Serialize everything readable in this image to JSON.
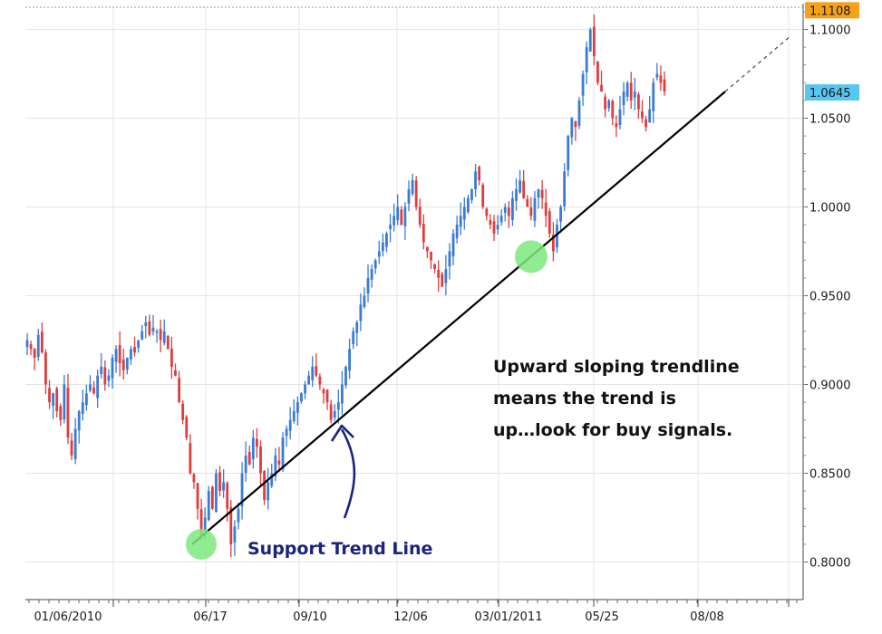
{
  "chart_data": {
    "type": "candlestick",
    "title": "",
    "xlabel": "",
    "ylabel": "",
    "ylim": [
      0.7925,
      1.1108
    ],
    "x_tick_labels": [
      "01/06/2010",
      "06/17",
      "09/10",
      "12/06",
      "03/01/2011",
      "05/25",
      "08/08"
    ],
    "y_tick_labels": [
      "1.1000",
      "1.0500",
      "1.0000",
      "0.9500",
      "0.9000",
      "0.8500",
      "0.8000"
    ],
    "y_ticks": [
      1.1,
      1.05,
      1.0,
      0.95,
      0.9,
      0.85,
      0.8
    ],
    "price_tags": [
      {
        "label": "1.1108",
        "value": 1.1108,
        "color": "#f7a11b"
      },
      {
        "label": "1.0645",
        "value": 1.0645,
        "color": "#57c7f2"
      }
    ],
    "grid": true,
    "colors": {
      "up": "#3a7bd5",
      "down": "#e03c3c",
      "trendline": "#000000",
      "touch": "#7ee87e",
      "arrow": "#1a237e"
    },
    "trendline": {
      "name": "Support Trend Line",
      "start": 0.81,
      "end": 1.065
    },
    "trend_touches": [
      0.81,
      0.972
    ],
    "close_series": [
      0.925,
      0.92,
      0.915,
      0.928,
      0.918,
      0.9,
      0.89,
      0.895,
      0.885,
      0.88,
      0.9,
      0.87,
      0.86,
      0.875,
      0.885,
      0.89,
      0.895,
      0.9,
      0.895,
      0.905,
      0.91,
      0.9,
      0.905,
      0.915,
      0.92,
      0.912,
      0.908,
      0.915,
      0.92,
      0.918,
      0.925,
      0.93,
      0.935,
      0.928,
      0.932,
      0.93,
      0.925,
      0.93,
      0.92,
      0.91,
      0.905,
      0.89,
      0.88,
      0.87,
      0.85,
      0.845,
      0.83,
      0.815,
      0.825,
      0.84,
      0.83,
      0.85,
      0.84,
      0.845,
      0.83,
      0.81,
      0.82,
      0.83,
      0.85,
      0.86,
      0.855,
      0.87,
      0.865,
      0.85,
      0.835,
      0.845,
      0.85,
      0.86,
      0.855,
      0.87,
      0.875,
      0.88,
      0.885,
      0.89,
      0.895,
      0.9,
      0.905,
      0.91,
      0.905,
      0.9,
      0.895,
      0.89,
      0.88,
      0.885,
      0.89,
      0.9,
      0.91,
      0.92,
      0.93,
      0.935,
      0.945,
      0.95,
      0.96,
      0.965,
      0.97,
      0.975,
      0.98,
      0.985,
      0.99,
      0.995,
      1.0,
      0.99,
      1.0,
      1.01,
      1.015,
      1.0,
      0.99,
      0.98,
      0.975,
      0.97,
      0.965,
      0.96,
      0.955,
      0.965,
      0.975,
      0.985,
      0.99,
      0.995,
      1.0,
      1.005,
      1.01,
      1.02,
      1.015,
      1.0,
      0.995,
      0.99,
      0.985,
      0.99,
      0.995,
      1.0,
      0.995,
      1.005,
      1.01,
      1.015,
      1.005,
      1.0,
      0.995,
      1.005,
      1.01,
      1.005,
      0.995,
      0.985,
      0.975,
      0.99,
      1.0,
      1.02,
      1.04,
      1.05,
      1.045,
      1.06,
      1.075,
      1.09,
      1.1,
      1.085,
      1.07,
      1.065,
      1.055,
      1.06,
      1.05,
      1.045,
      1.055,
      1.065,
      1.07,
      1.06,
      1.065,
      1.055,
      1.05,
      1.045,
      1.055,
      1.07,
      1.075,
      1.07,
      1.065
    ]
  },
  "annotation": {
    "lines": [
      "Upward sloping trendline",
      "means the trend is",
      "up…look for buy signals."
    ]
  },
  "trend_label": "Support Trend Line"
}
